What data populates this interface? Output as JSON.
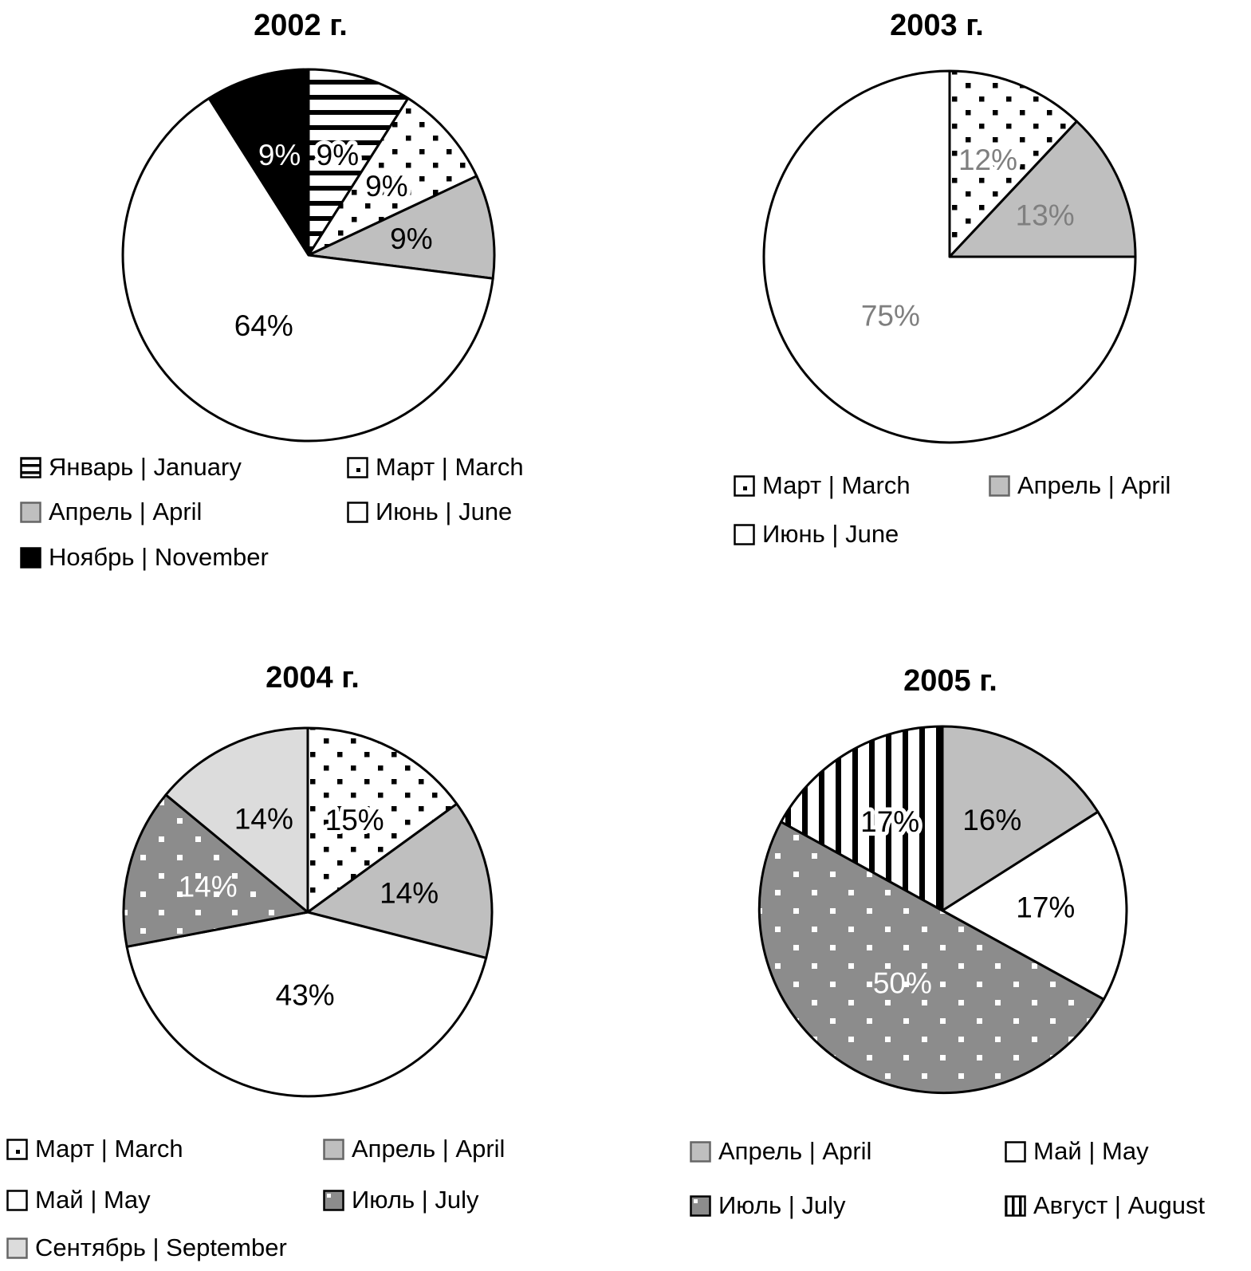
{
  "background": "#ffffff",
  "colors": {
    "slice_outline": "#000000",
    "gray": "#bfbfbf",
    "dark_gray": "#8c8c8c",
    "light_gray": "#dcdcdc",
    "black": "#000000",
    "white": "#ffffff",
    "muted_label_gray": "#7f7f7f"
  },
  "chart_data": [
    {
      "type": "pie",
      "title": "2002 г.",
      "unit": "%",
      "start_angle_deg": 0,
      "direction": "clockwise",
      "legend_position": "bottom",
      "legend_columns": 2,
      "slices": [
        {
          "label": "Январь | January",
          "value": 9,
          "value_label": "9%",
          "pattern": "hlines",
          "value_label_color": "#000000"
        },
        {
          "label": "Март | March",
          "value": 9,
          "value_label": "9%",
          "pattern": "dots",
          "value_label_color": "#000000"
        },
        {
          "label": "Апрель | April",
          "value": 9,
          "value_label": "9%",
          "pattern": "gray",
          "value_label_color": "#000000"
        },
        {
          "label": "Июнь | June",
          "value": 64,
          "value_label": "64%",
          "pattern": "white",
          "value_label_color": "#000000"
        },
        {
          "label": "Ноябрь | November",
          "value": 9,
          "value_label": "9%",
          "pattern": "black",
          "value_label_color": "#ffffff"
        }
      ]
    },
    {
      "type": "pie",
      "title": "2003 г.",
      "unit": "%",
      "start_angle_deg": 0,
      "direction": "clockwise",
      "legend_position": "bottom",
      "legend_columns": 2,
      "slices": [
        {
          "label": "Март | March",
          "value": 12,
          "value_label": "12%",
          "pattern": "dots",
          "value_label_color": "#7f7f7f"
        },
        {
          "label": "Апрель | April",
          "value": 13,
          "value_label": "13%",
          "pattern": "gray",
          "value_label_color": "#7f7f7f"
        },
        {
          "label": "Июнь | June",
          "value": 75,
          "value_label": "75%",
          "pattern": "white",
          "value_label_color": "#7f7f7f"
        }
      ]
    },
    {
      "type": "pie",
      "title": "2004 г.",
      "unit": "%",
      "start_angle_deg": 0,
      "direction": "clockwise",
      "legend_position": "bottom",
      "legend_columns": 2,
      "slices": [
        {
          "label": "Март | March",
          "value": 15,
          "value_label": "15%",
          "pattern": "dots",
          "value_label_color": "#000000"
        },
        {
          "label": "Апрель | April",
          "value": 14,
          "value_label": "14%",
          "pattern": "gray",
          "value_label_color": "#000000"
        },
        {
          "label": "Май | May",
          "value": 43,
          "value_label": "43%",
          "pattern": "white",
          "value_label_color": "#000000"
        },
        {
          "label": "Июль | July",
          "value": 14,
          "value_label": "14%",
          "pattern": "wdots",
          "value_label_color": "#ffffff"
        },
        {
          "label": "Сентябрь | September",
          "value": 14,
          "value_label": "14%",
          "pattern": "lightgray",
          "value_label_color": "#000000"
        }
      ]
    },
    {
      "type": "pie",
      "title": "2005 г.",
      "unit": "%",
      "start_angle_deg": 0,
      "direction": "clockwise",
      "legend_position": "bottom",
      "legend_columns": 2,
      "slices": [
        {
          "label": "Апрель | April",
          "value": 16,
          "value_label": "16%",
          "pattern": "gray",
          "value_label_color": "#000000"
        },
        {
          "label": "Май | May",
          "value": 17,
          "value_label": "17%",
          "pattern": "white",
          "value_label_color": "#000000"
        },
        {
          "label": "Июль | July",
          "value": 50,
          "value_label": "50%",
          "pattern": "wdots",
          "value_label_color": "#ffffff"
        },
        {
          "label": "Август | August",
          "value": 17,
          "value_label": "17%",
          "pattern": "vlines",
          "value_label_color": "#000000"
        }
      ]
    }
  ]
}
